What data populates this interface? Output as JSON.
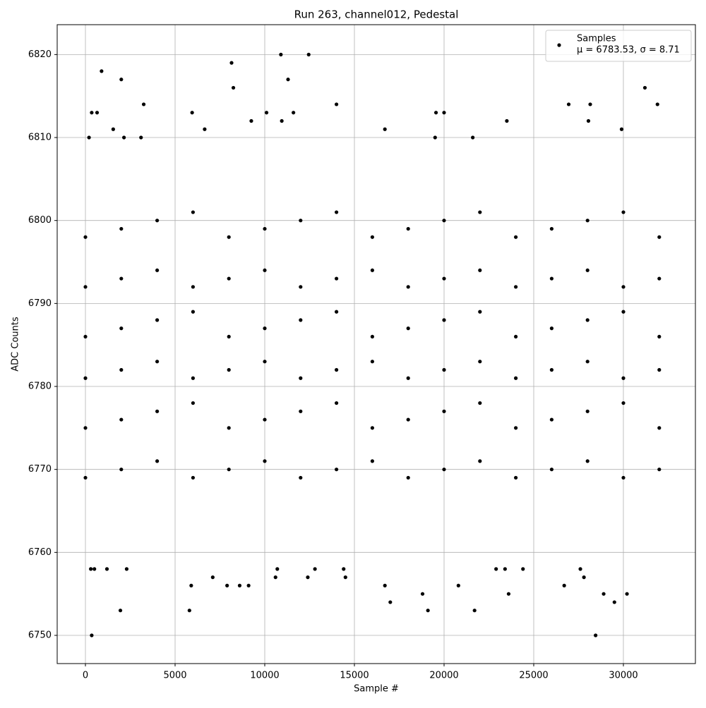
{
  "chart_data": {
    "type": "scatter",
    "title": "Run 263, channel012, Pedestal",
    "x_label": "Sample #",
    "y_label": "ADC Counts",
    "legend_note": "μ = 6783.53, σ = 8.71",
    "legend_position": "upper right",
    "grid": true,
    "xlim": [
      -1575,
      34016
    ],
    "ylim": [
      6746.6,
      6823.6
    ],
    "xticks": [
      0,
      5000,
      10000,
      15000,
      20000,
      25000,
      30000
    ],
    "yticks": [
      6750,
      6760,
      6770,
      6780,
      6790,
      6800,
      6810,
      6820
    ],
    "series": [
      {
        "name": "Samples",
        "color": "#000000",
        "x": [
          0,
          0,
          0,
          0,
          0,
          0,
          2000,
          2000,
          2000,
          2000,
          2000,
          2000,
          4000,
          4000,
          4000,
          4000,
          4000,
          4000,
          6000,
          6000,
          6000,
          6000,
          6000,
          6000,
          8000,
          8000,
          8000,
          8000,
          8000,
          8000,
          10000,
          10000,
          10000,
          10000,
          10000,
          10000,
          12000,
          12000,
          12000,
          12000,
          12000,
          12000,
          14000,
          14000,
          14000,
          14000,
          14000,
          14000,
          16000,
          16000,
          16000,
          16000,
          16000,
          16000,
          18000,
          18000,
          18000,
          18000,
          18000,
          18000,
          20000,
          20000,
          20000,
          20000,
          20000,
          20000,
          22000,
          22000,
          22000,
          22000,
          22000,
          22000,
          24000,
          24000,
          24000,
          24000,
          24000,
          24000,
          26000,
          26000,
          26000,
          26000,
          26000,
          26000,
          28000,
          28000,
          28000,
          28000,
          28000,
          28000,
          30000,
          30000,
          30000,
          30000,
          30000,
          30000,
          32000,
          32000,
          32000,
          32000,
          32000,
          32000,
          350,
          28450,
          1950,
          5800,
          19100,
          21700,
          29500,
          17000,
          30200,
          18800,
          23600,
          28900,
          5900,
          7900,
          8600,
          9100,
          12400,
          14500,
          16700,
          20800,
          26700,
          7100,
          10600,
          27800,
          300,
          500,
          1200,
          2300,
          10700,
          14400,
          12800,
          22900,
          23400,
          27600,
          24400,
          350,
          900,
          650,
          2000,
          3250,
          5950,
          8150,
          8250,
          10900,
          11300,
          12450,
          10100,
          11600,
          14000,
          19550,
          20000,
          26950,
          28150,
          28050,
          31200,
          31900,
          23500,
          200,
          1550,
          6650,
          9250,
          10950,
          16700,
          29900,
          2150,
          3100,
          19500,
          21600
        ],
        "values": [
          6769,
          6775,
          6781,
          6786,
          6792,
          6798,
          6770,
          6776,
          6782,
          6787,
          6793,
          6799,
          6771,
          6777,
          6783,
          6788,
          6794,
          6800,
          6769,
          6778,
          6781,
          6789,
          6792,
          6801,
          6770,
          6775,
          6782,
          6786,
          6793,
          6798,
          6771,
          6776,
          6783,
          6787,
          6794,
          6799,
          6769,
          6777,
          6781,
          6788,
          6792,
          6800,
          6770,
          6778,
          6782,
          6789,
          6793,
          6801,
          6771,
          6775,
          6783,
          6786,
          6794,
          6798,
          6769,
          6776,
          6781,
          6787,
          6792,
          6799,
          6770,
          6777,
          6782,
          6788,
          6793,
          6800,
          6771,
          6778,
          6783,
          6789,
          6794,
          6801,
          6769,
          6775,
          6781,
          6786,
          6792,
          6798,
          6770,
          6776,
          6782,
          6787,
          6793,
          6799,
          6771,
          6777,
          6783,
          6788,
          6794,
          6800,
          6769,
          6778,
          6781,
          6789,
          6792,
          6801,
          6770,
          6775,
          6782,
          6786,
          6793,
          6798,
          6750,
          6750,
          6753,
          6753,
          6753,
          6753,
          6754,
          6754,
          6755,
          6755,
          6755,
          6755,
          6756,
          6756,
          6756,
          6756,
          6757,
          6757,
          6756,
          6756,
          6756,
          6757,
          6757,
          6757,
          6758,
          6758,
          6758,
          6758,
          6758,
          6758,
          6758,
          6758,
          6758,
          6758,
          6758,
          6813,
          6818,
          6813,
          6817,
          6814,
          6813,
          6819,
          6816,
          6820,
          6817,
          6820,
          6813,
          6813,
          6814,
          6813,
          6813,
          6814,
          6814,
          6812,
          6816,
          6814,
          6812,
          6810,
          6811,
          6811,
          6812,
          6812,
          6811,
          6811,
          6810,
          6810,
          6810,
          6810
        ]
      }
    ]
  }
}
